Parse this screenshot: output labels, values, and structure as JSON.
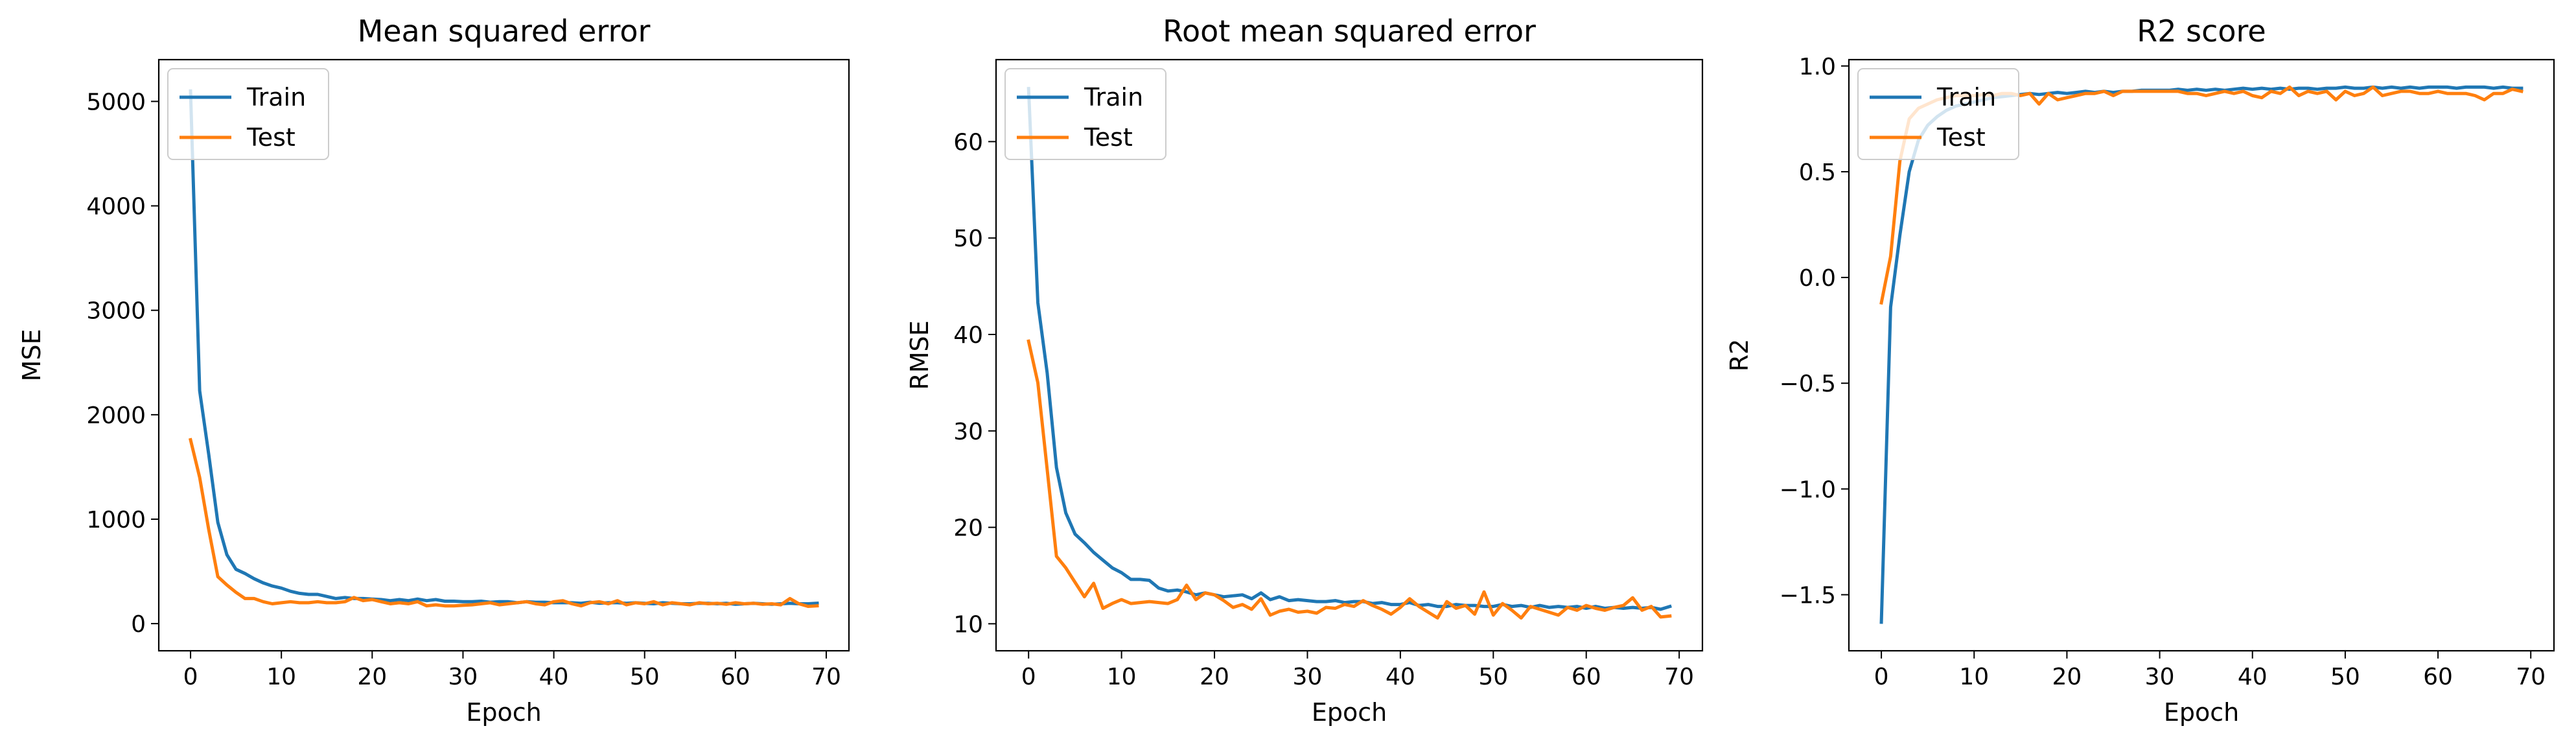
{
  "colors": {
    "train": "#1f77b4",
    "test": "#ff7f0e"
  },
  "chart_data": [
    {
      "type": "line",
      "title": "Mean squared error",
      "xlabel": "Epoch",
      "ylabel": "MSE",
      "xlim": [
        -3.5,
        72.5
      ],
      "ylim": [
        -260,
        5400
      ],
      "xticks": [
        0,
        10,
        20,
        30,
        40,
        50,
        60,
        70
      ],
      "yticks": [
        0,
        1000,
        2000,
        3000,
        4000,
        5000
      ],
      "legend": "upper-left",
      "grid": false,
      "series": [
        {
          "name": "Train",
          "color": "#1f77b4",
          "x": [
            0,
            1,
            2,
            3,
            4,
            5,
            6,
            7,
            8,
            9,
            10,
            11,
            12,
            13,
            14,
            15,
            16,
            17,
            18,
            19,
            20,
            21,
            22,
            23,
            24,
            25,
            26,
            27,
            28,
            29,
            30,
            31,
            32,
            33,
            34,
            35,
            36,
            37,
            38,
            39,
            40,
            41,
            42,
            43,
            44,
            45,
            46,
            47,
            48,
            49,
            50,
            51,
            52,
            53,
            54,
            55,
            56,
            57,
            58,
            59,
            60,
            61,
            62,
            63,
            64,
            65,
            66,
            67,
            68,
            69
          ],
          "y": [
            5100,
            2230,
            1620,
            970,
            660,
            520,
            480,
            430,
            390,
            360,
            340,
            310,
            290,
            280,
            280,
            260,
            240,
            250,
            240,
            240,
            235,
            230,
            220,
            230,
            220,
            235,
            220,
            230,
            215,
            215,
            210,
            210,
            215,
            205,
            210,
            210,
            200,
            210,
            205,
            205,
            200,
            200,
            200,
            195,
            205,
            195,
            200,
            200,
            195,
            200,
            195,
            190,
            200,
            195,
            190,
            190,
            195,
            195,
            190,
            195,
            185,
            190,
            195,
            190,
            185,
            190,
            195,
            190,
            190,
            195
          ]
        },
        {
          "name": "Test",
          "color": "#ff7f0e",
          "x": [
            0,
            1,
            2,
            3,
            4,
            5,
            6,
            7,
            8,
            9,
            10,
            11,
            12,
            13,
            14,
            15,
            16,
            17,
            18,
            19,
            20,
            21,
            22,
            23,
            24,
            25,
            26,
            27,
            28,
            29,
            30,
            31,
            32,
            33,
            34,
            35,
            36,
            37,
            38,
            39,
            40,
            41,
            42,
            43,
            44,
            45,
            46,
            47,
            48,
            49,
            50,
            51,
            52,
            53,
            54,
            55,
            56,
            57,
            58,
            59,
            60,
            61,
            62,
            63,
            64,
            65,
            66,
            67,
            68,
            69
          ],
          "y": [
            1760,
            1400,
            900,
            450,
            370,
            300,
            240,
            240,
            210,
            190,
            200,
            210,
            200,
            200,
            210,
            200,
            200,
            210,
            250,
            220,
            230,
            210,
            190,
            200,
            190,
            210,
            170,
            180,
            170,
            170,
            175,
            180,
            190,
            200,
            180,
            190,
            200,
            210,
            190,
            180,
            210,
            220,
            190,
            170,
            200,
            210,
            190,
            220,
            180,
            200,
            190,
            210,
            180,
            200,
            190,
            180,
            200,
            190,
            195,
            185,
            200,
            190,
            195,
            185,
            190,
            180,
            240,
            190,
            165,
            170
          ]
        }
      ]
    },
    {
      "type": "line",
      "title": "Root mean squared error",
      "xlabel": "Epoch",
      "ylabel": "RMSE",
      "xlim": [
        -3.5,
        72.5
      ],
      "ylim": [
        7.2,
        68.5
      ],
      "xticks": [
        0,
        10,
        20,
        30,
        40,
        50,
        60,
        70
      ],
      "yticks": [
        10,
        20,
        30,
        40,
        50,
        60
      ],
      "legend": "upper-left",
      "grid": false,
      "series": [
        {
          "name": "Train",
          "color": "#1f77b4",
          "x": [
            0,
            1,
            2,
            3,
            4,
            5,
            6,
            7,
            8,
            9,
            10,
            11,
            12,
            13,
            14,
            15,
            16,
            17,
            18,
            19,
            20,
            21,
            22,
            23,
            24,
            25,
            26,
            27,
            28,
            29,
            30,
            31,
            32,
            33,
            34,
            35,
            36,
            37,
            38,
            39,
            40,
            41,
            42,
            43,
            44,
            45,
            46,
            47,
            48,
            49,
            50,
            51,
            52,
            53,
            54,
            55,
            56,
            57,
            58,
            59,
            60,
            61,
            62,
            63,
            64,
            65,
            66,
            67,
            68,
            69
          ],
          "y": [
            65.5,
            43.3,
            36.0,
            26.2,
            21.5,
            19.3,
            18.4,
            17.4,
            16.6,
            15.8,
            15.3,
            14.6,
            14.6,
            14.5,
            13.7,
            13.4,
            13.5,
            13.3,
            13.0,
            13.2,
            13.0,
            12.8,
            12.9,
            13.0,
            12.6,
            13.2,
            12.5,
            12.8,
            12.4,
            12.5,
            12.4,
            12.3,
            12.3,
            12.4,
            12.2,
            12.3,
            12.3,
            12.1,
            12.2,
            12.0,
            12.0,
            12.2,
            11.9,
            12.0,
            11.8,
            11.8,
            12.0,
            11.9,
            11.9,
            11.8,
            11.8,
            12.0,
            11.8,
            11.9,
            11.7,
            11.9,
            11.7,
            11.8,
            11.7,
            11.8,
            11.6,
            11.8,
            11.6,
            11.7,
            11.6,
            11.7,
            11.6,
            11.7,
            11.5,
            11.8
          ]
        },
        {
          "name": "Test",
          "color": "#ff7f0e",
          "x": [
            0,
            1,
            2,
            3,
            4,
            5,
            6,
            7,
            8,
            9,
            10,
            11,
            12,
            13,
            14,
            15,
            16,
            17,
            18,
            19,
            20,
            21,
            22,
            23,
            24,
            25,
            26,
            27,
            28,
            29,
            30,
            31,
            32,
            33,
            34,
            35,
            36,
            37,
            38,
            39,
            40,
            41,
            42,
            43,
            44,
            45,
            46,
            47,
            48,
            49,
            50,
            51,
            52,
            53,
            54,
            55,
            56,
            57,
            58,
            59,
            60,
            61,
            62,
            63,
            64,
            65,
            66,
            67,
            68,
            69
          ],
          "y": [
            39.3,
            35.0,
            26.0,
            17.0,
            15.8,
            14.3,
            12.8,
            14.2,
            11.6,
            12.1,
            12.5,
            12.1,
            12.2,
            12.3,
            12.2,
            12.1,
            12.5,
            14.0,
            12.5,
            13.2,
            13.0,
            12.4,
            11.7,
            12.0,
            11.5,
            12.6,
            10.9,
            11.3,
            11.5,
            11.2,
            11.3,
            11.1,
            11.7,
            11.6,
            12.0,
            11.8,
            12.4,
            11.9,
            11.5,
            11.0,
            11.7,
            12.6,
            11.8,
            11.2,
            10.6,
            12.3,
            11.6,
            11.9,
            11.0,
            13.3,
            10.9,
            12.1,
            11.4,
            10.6,
            11.8,
            11.5,
            11.2,
            10.9,
            11.7,
            11.4,
            11.9,
            11.6,
            11.4,
            11.7,
            11.9,
            12.7,
            11.4,
            11.8,
            10.7,
            10.8
          ]
        }
      ]
    },
    {
      "type": "line",
      "title": "R2 score",
      "xlabel": "Epoch",
      "ylabel": "R2",
      "xlim": [
        -3.5,
        72.5
      ],
      "ylim": [
        -1.765,
        1.03
      ],
      "xticks": [
        0,
        10,
        20,
        30,
        40,
        50,
        60,
        70
      ],
      "yticks": [
        -1.5,
        -1.0,
        -0.5,
        0.0,
        0.5,
        1.0
      ],
      "ytick_labels": [
        "−1.5",
        "−1.0",
        "−0.5",
        "0.0",
        "0.5",
        "1.0"
      ],
      "legend": "upper-left",
      "grid": false,
      "series": [
        {
          "name": "Train",
          "color": "#1f77b4",
          "x": [
            0,
            1,
            2,
            3,
            4,
            5,
            6,
            7,
            8,
            9,
            10,
            11,
            12,
            13,
            14,
            15,
            16,
            17,
            18,
            19,
            20,
            21,
            22,
            23,
            24,
            25,
            26,
            27,
            28,
            29,
            30,
            31,
            32,
            33,
            34,
            35,
            36,
            37,
            38,
            39,
            40,
            41,
            42,
            43,
            44,
            45,
            46,
            47,
            48,
            49,
            50,
            51,
            52,
            53,
            54,
            55,
            56,
            57,
            58,
            59,
            60,
            61,
            62,
            63,
            64,
            65,
            66,
            67,
            68,
            69
          ],
          "y": [
            -1.63,
            -0.14,
            0.2,
            0.5,
            0.65,
            0.72,
            0.76,
            0.79,
            0.81,
            0.82,
            0.83,
            0.84,
            0.85,
            0.855,
            0.86,
            0.865,
            0.87,
            0.865,
            0.87,
            0.875,
            0.87,
            0.875,
            0.88,
            0.875,
            0.88,
            0.875,
            0.88,
            0.88,
            0.885,
            0.885,
            0.885,
            0.885,
            0.89,
            0.885,
            0.89,
            0.885,
            0.89,
            0.885,
            0.89,
            0.895,
            0.89,
            0.895,
            0.89,
            0.895,
            0.89,
            0.895,
            0.895,
            0.89,
            0.895,
            0.895,
            0.9,
            0.895,
            0.895,
            0.9,
            0.895,
            0.9,
            0.895,
            0.9,
            0.895,
            0.9,
            0.9,
            0.9,
            0.895,
            0.9,
            0.9,
            0.9,
            0.895,
            0.9,
            0.895,
            0.895
          ]
        },
        {
          "name": "Test",
          "color": "#ff7f0e",
          "x": [
            0,
            1,
            2,
            3,
            4,
            5,
            6,
            7,
            8,
            9,
            10,
            11,
            12,
            13,
            14,
            15,
            16,
            17,
            18,
            19,
            20,
            21,
            22,
            23,
            24,
            25,
            26,
            27,
            28,
            29,
            30,
            31,
            32,
            33,
            34,
            35,
            36,
            37,
            38,
            39,
            40,
            41,
            42,
            43,
            44,
            45,
            46,
            47,
            48,
            49,
            50,
            51,
            52,
            53,
            54,
            55,
            56,
            57,
            58,
            59,
            60,
            61,
            62,
            63,
            64,
            65,
            66,
            67,
            68,
            69
          ],
          "y": [
            -0.12,
            0.1,
            0.55,
            0.75,
            0.8,
            0.82,
            0.84,
            0.85,
            0.86,
            0.86,
            0.86,
            0.865,
            0.86,
            0.87,
            0.87,
            0.86,
            0.87,
            0.82,
            0.87,
            0.84,
            0.85,
            0.86,
            0.87,
            0.87,
            0.88,
            0.86,
            0.88,
            0.88,
            0.88,
            0.88,
            0.88,
            0.88,
            0.88,
            0.87,
            0.87,
            0.86,
            0.87,
            0.88,
            0.87,
            0.88,
            0.86,
            0.85,
            0.88,
            0.87,
            0.9,
            0.86,
            0.88,
            0.87,
            0.88,
            0.84,
            0.88,
            0.86,
            0.87,
            0.9,
            0.86,
            0.87,
            0.88,
            0.88,
            0.87,
            0.87,
            0.88,
            0.87,
            0.87,
            0.87,
            0.86,
            0.84,
            0.87,
            0.87,
            0.89,
            0.88
          ]
        }
      ]
    }
  ]
}
